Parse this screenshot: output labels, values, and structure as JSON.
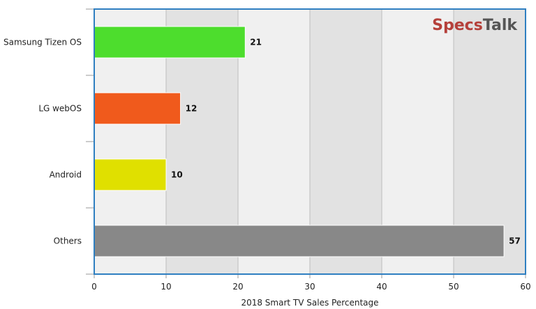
{
  "brand": {
    "part1": "Specs",
    "part2": "Talk",
    "color1": "#b5403a",
    "color2": "#555555"
  },
  "chart_data": {
    "type": "bar",
    "orientation": "horizontal",
    "categories": [
      "Samsung Tizen OS",
      "LG webOS",
      "Android",
      "Others"
    ],
    "values": [
      21,
      12,
      10,
      57
    ],
    "value_labels": [
      "21",
      "12",
      "10",
      "57"
    ],
    "colors": [
      "#4ddd2d",
      "#f05a1c",
      "#e0e000",
      "#888888"
    ],
    "xlabel": "2018 Smart TV Sales Percentage",
    "ylabel": "",
    "xlim": [
      0,
      60
    ],
    "xticks": [
      "0",
      "10",
      "20",
      "30",
      "40",
      "50",
      "60"
    ],
    "grid": true,
    "legend": "none",
    "frame_color": "#2f7fc1",
    "band_colors": [
      "#f0f0f0",
      "#e2e2e2"
    ]
  }
}
